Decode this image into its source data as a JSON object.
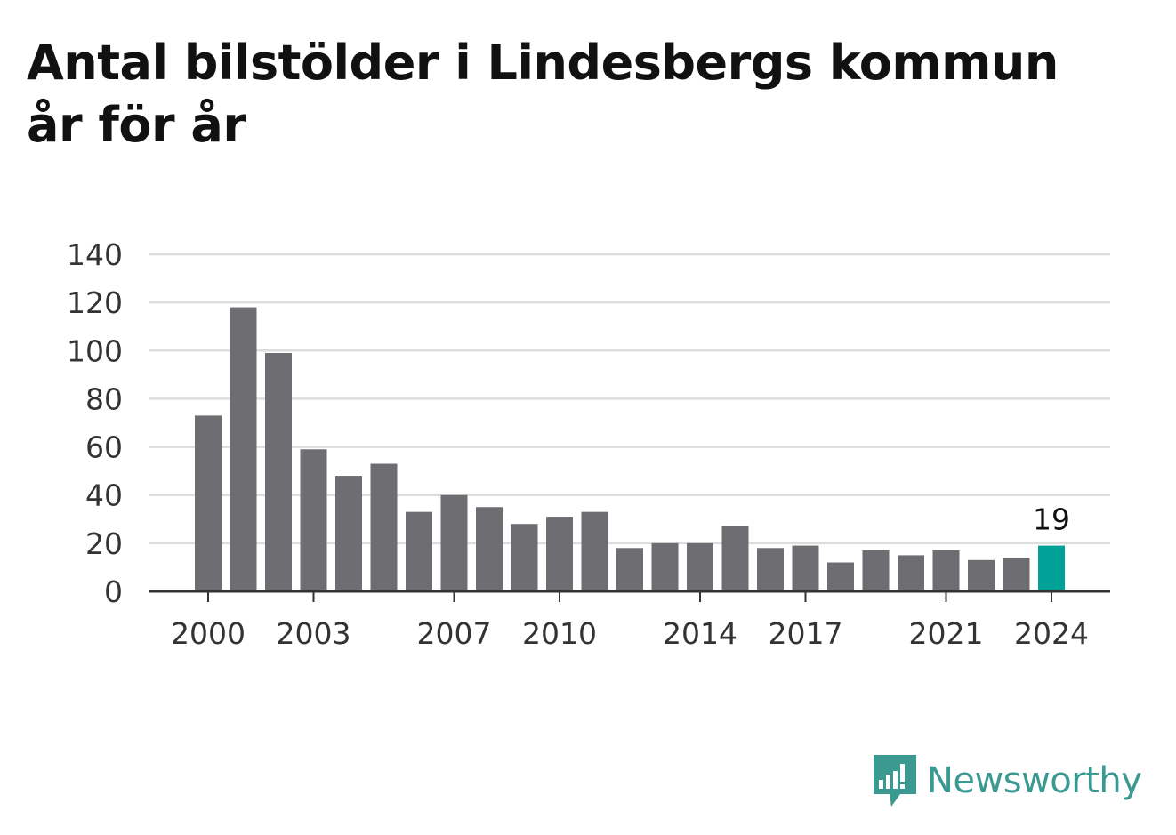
{
  "title_lines": [
    "Antal bilstölder i Lindesbergs kommun",
    "år för år"
  ],
  "brand": {
    "name": "Newsworthy",
    "icon": "newsworthy-logo-icon",
    "color": "#3a9a92"
  },
  "colors": {
    "bar": "#6e6d72",
    "highlight": "#00a196",
    "grid": "#dddddd",
    "axis": "#333333",
    "text": "#333333"
  },
  "chart_data": {
    "type": "bar",
    "title": "Antal bilstölder i Lindesbergs kommun år för år",
    "categories": [
      "2000",
      "2001",
      "2002",
      "2003",
      "2004",
      "2005",
      "2006",
      "2007",
      "2008",
      "2009",
      "2010",
      "2011",
      "2012",
      "2013",
      "2014",
      "2015",
      "2016",
      "2017",
      "2018",
      "2019",
      "2020",
      "2021",
      "2022",
      "2023",
      "2024"
    ],
    "values": [
      73,
      118,
      99,
      59,
      48,
      53,
      33,
      40,
      35,
      28,
      31,
      33,
      18,
      20,
      20,
      27,
      18,
      19,
      12,
      17,
      15,
      17,
      13,
      14,
      19
    ],
    "highlight_index": 24,
    "highlight_label": "19",
    "x_tick_labels": [
      "2000",
      "2003",
      "2007",
      "2010",
      "2014",
      "2017",
      "2021",
      "2024"
    ],
    "y_ticks": [
      0,
      20,
      40,
      60,
      80,
      100,
      120,
      140
    ],
    "ylim": [
      0,
      140
    ],
    "xlabel": "",
    "ylabel": "",
    "grid": true,
    "legend": "none"
  }
}
